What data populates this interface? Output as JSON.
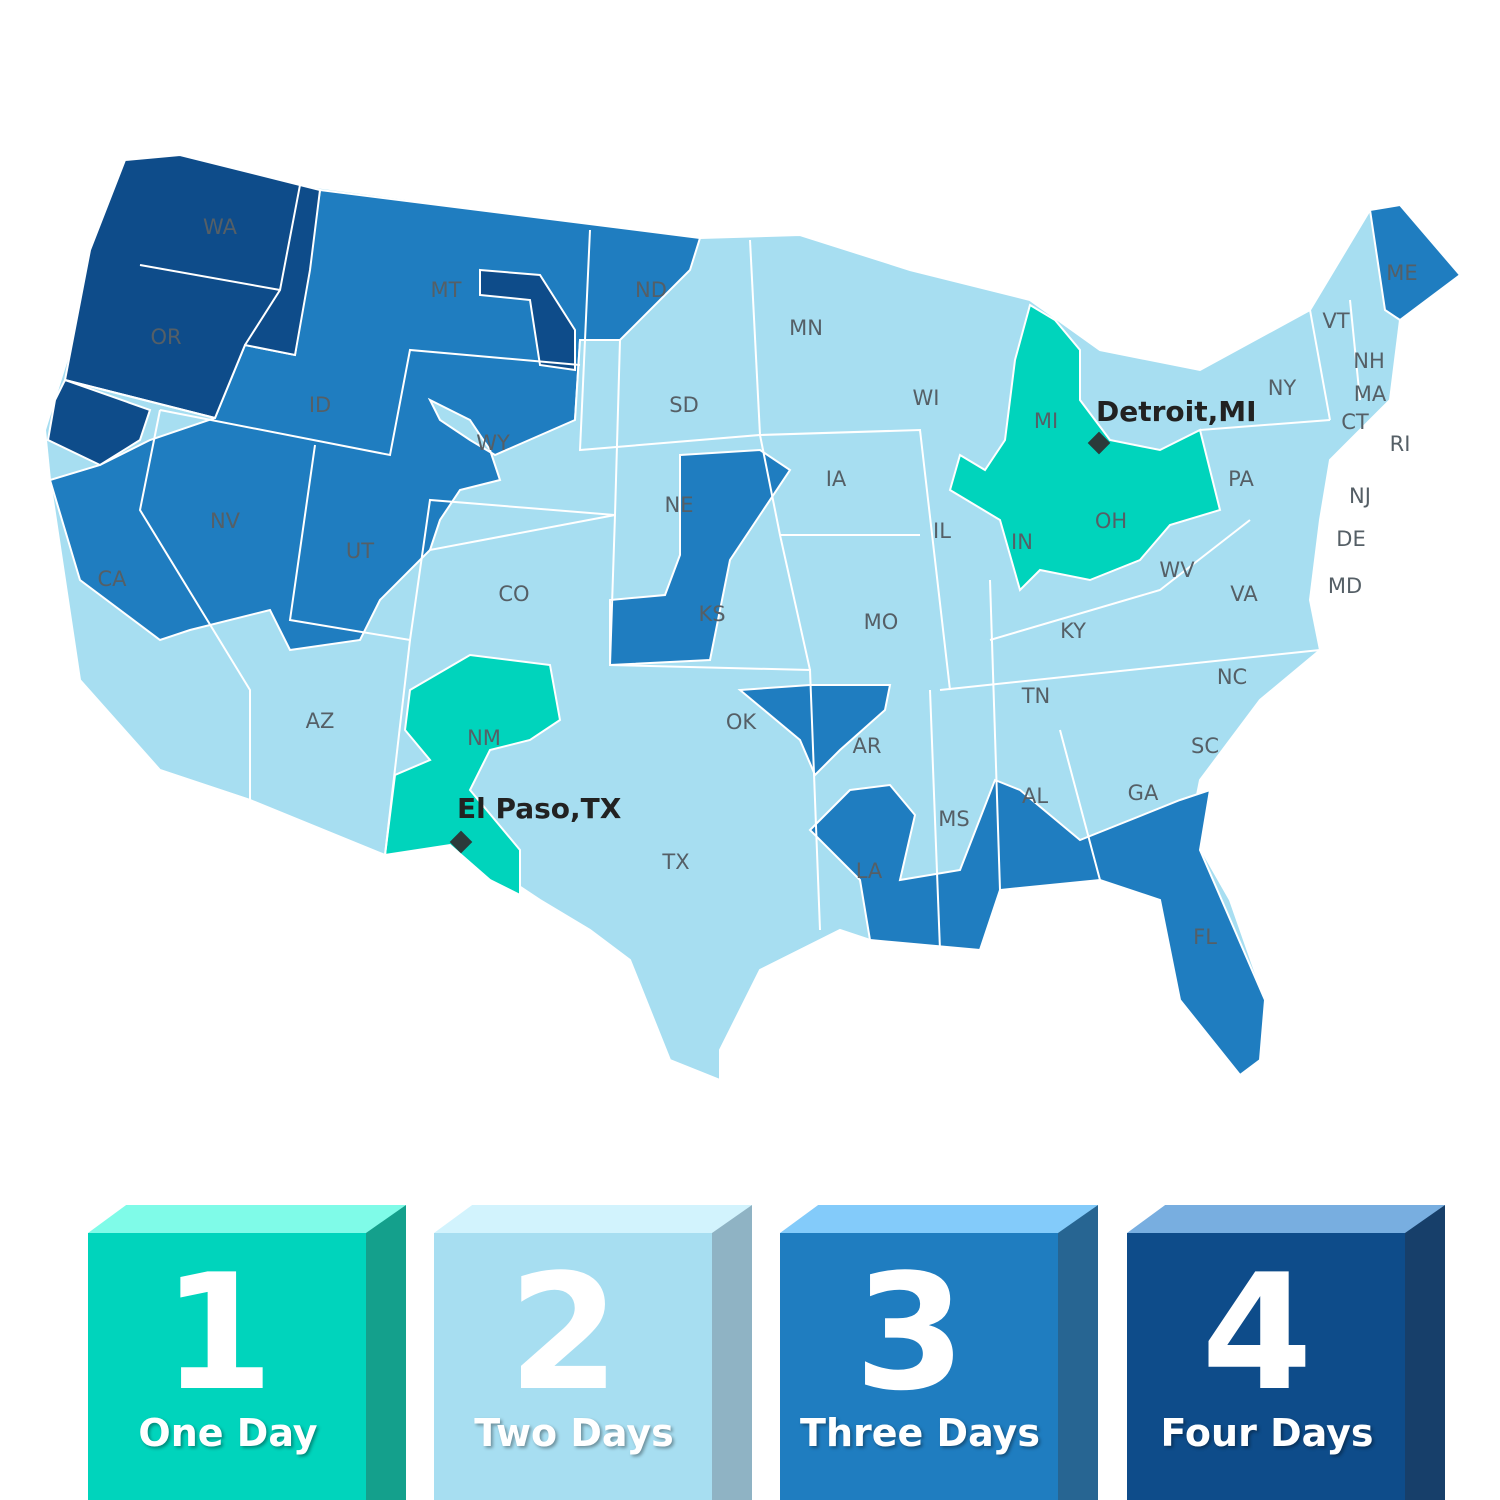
{
  "colors": {
    "one_day": "#00D4BC",
    "two_days": "#A7DEF1",
    "three_days": "#1F7DC0",
    "four_days": "#0E4C8A",
    "border": "#ffffff"
  },
  "states": [
    "WA",
    "OR",
    "CA",
    "NV",
    "ID",
    "MT",
    "WY",
    "UT",
    "AZ",
    "CO",
    "NM",
    "ND",
    "SD",
    "NE",
    "KS",
    "OK",
    "TX",
    "MN",
    "IA",
    "MO",
    "AR",
    "LA",
    "WI",
    "IL",
    "MI",
    "IN",
    "OH",
    "KY",
    "TN",
    "MS",
    "AL",
    "GA",
    "FL",
    "SC",
    "NC",
    "VA",
    "WV",
    "PA",
    "NY",
    "VT",
    "NH",
    "ME",
    "MA",
    "CT",
    "RI",
    "NJ",
    "DE",
    "MD"
  ],
  "cities": [
    {
      "name": "Detroit,MI",
      "icon": "diamond-marker-icon"
    },
    {
      "name": "El Paso,TX",
      "icon": "diamond-marker-icon"
    }
  ],
  "legend": [
    {
      "number": "1",
      "label": "One Day",
      "face": "#00D4BC",
      "top": "#7FFBE8",
      "side": "#14A08C"
    },
    {
      "number": "2",
      "label": "Two Days",
      "face": "#A7DEF1",
      "top": "#D2F3FD",
      "side": "#8FB3C4"
    },
    {
      "number": "3",
      "label": "Three Days",
      "face": "#1F7DC0",
      "top": "#83CBFA",
      "side": "#276592"
    },
    {
      "number": "4",
      "label": "Four Days",
      "face": "#0E4C8A",
      "top": "#78AEE0",
      "side": "#173F6A"
    }
  ]
}
